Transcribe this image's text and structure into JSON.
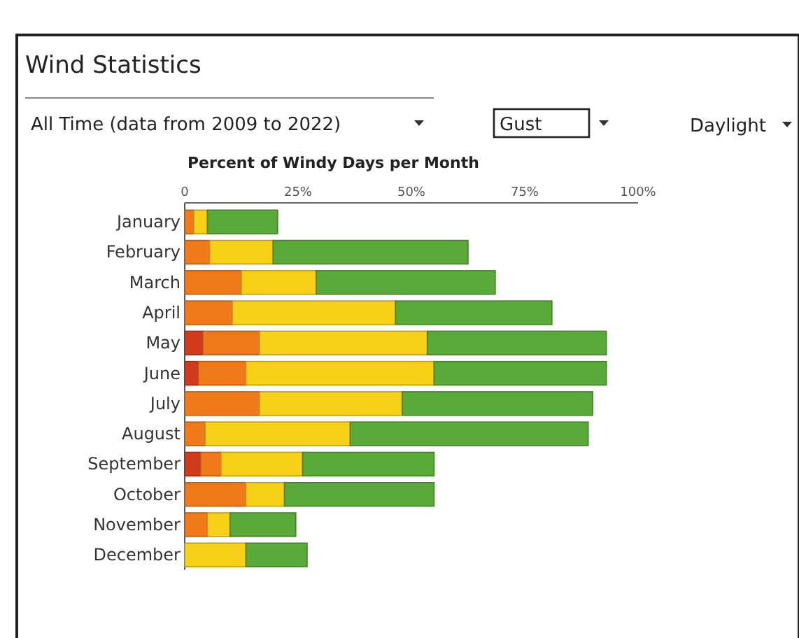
{
  "chart_data": {
    "type": "bar",
    "orientation": "horizontal",
    "stacked": true,
    "title": "Wind Statistics",
    "xlabel": "Percent of Windy Days per Month",
    "annotations": [
      "All Time (data from 2009 to 2022)",
      "Gust",
      "Daylight"
    ],
    "categories": [
      "January",
      "February",
      "March",
      "April",
      "May",
      "June",
      "July",
      "August",
      "September",
      "October",
      "November",
      "December"
    ],
    "series": [
      {
        "color": "#d23a1c",
        "values": [
          0,
          0,
          0,
          0,
          4,
          3,
          0,
          0,
          3.5,
          0,
          0,
          0
        ]
      },
      {
        "color": "#f07a1a",
        "values": [
          2,
          5.5,
          12.5,
          10.5,
          12.5,
          10.5,
          16.5,
          4.5,
          4.5,
          13.5,
          5,
          0
        ]
      },
      {
        "color": "#f7d117",
        "values": [
          3,
          14,
          16.5,
          36,
          37,
          41.5,
          31.5,
          32,
          18,
          8.5,
          5,
          13.5
        ]
      },
      {
        "color": "#5aaa3a",
        "values": [
          15.5,
          43,
          39.5,
          34.5,
          39.5,
          38,
          42,
          52.5,
          29,
          33,
          14.5,
          13.5
        ]
      }
    ],
    "xlim": [
      0,
      100
    ],
    "xticks": [
      0,
      {
        "value": 25,
        "label": "25%"
      },
      {
        "value": 50,
        "label": "50%"
      },
      {
        "value": 75,
        "label": "75%"
      },
      {
        "value": 100,
        "label": "100%"
      }
    ],
    "grid": false
  }
}
